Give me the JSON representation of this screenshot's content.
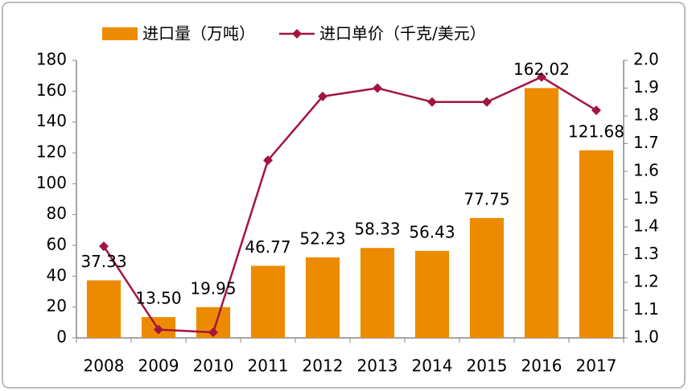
{
  "chart_data": {
    "type": "combo",
    "categories": [
      "2008",
      "2009",
      "2010",
      "2011",
      "2012",
      "2013",
      "2014",
      "2015",
      "2016",
      "2017"
    ],
    "series": [
      {
        "name": "进口量（万吨）",
        "type": "bar",
        "color": "#ed8b00",
        "values": [
          37.33,
          13.5,
          19.95,
          46.77,
          52.23,
          58.33,
          56.43,
          77.75,
          162.02,
          121.68
        ],
        "value_labels": [
          "37.33",
          "13.50",
          "19.95",
          "46.77",
          "52.23",
          "58.33",
          "56.43",
          "77.75",
          "162.02",
          "121.68"
        ]
      },
      {
        "name": "进口单价（千克/美元）",
        "type": "line",
        "axis": "y2",
        "color": "#a3153f",
        "values": [
          1.33,
          1.03,
          1.02,
          1.64,
          1.87,
          1.9,
          1.85,
          1.85,
          1.94,
          1.82
        ]
      }
    ],
    "ylim": [
      0,
      180
    ],
    "yticks": [
      0,
      20,
      40,
      60,
      80,
      100,
      120,
      140,
      160,
      180
    ],
    "y2lim": [
      1,
      2
    ],
    "y2ticks": [
      {
        "value": 1,
        "label": "1.0"
      },
      1.1,
      1.2,
      1.3,
      1.4,
      1.5,
      1.6,
      1.7,
      1.8,
      1.9,
      {
        "value": 2,
        "label": "2.0"
      }
    ],
    "legend": "top",
    "grid": false
  }
}
